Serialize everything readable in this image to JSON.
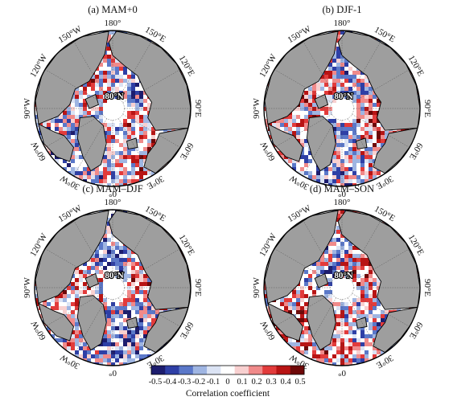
{
  "panels": [
    {
      "title": "(a) MAM+0"
    },
    {
      "title": "(b) DJF-1"
    },
    {
      "title": "(c) MAM–DJF"
    },
    {
      "title": "(d) MAM–SON"
    }
  ],
  "longitude_labels": [
    "180°",
    "150°E",
    "120°E",
    "90°E",
    "60°E",
    "30°E",
    "0°",
    "30°W",
    "60°W",
    "90°W",
    "120°W",
    "150°W"
  ],
  "latitude_label": "80°N",
  "colorbar": {
    "title": "Correlation coefficient",
    "ticks": [
      "-0.5",
      "-0.4",
      "-0.3",
      "-0.2",
      "-0.1",
      "0",
      "0.1",
      "0.2",
      "0.3",
      "0.4",
      "0.5"
    ],
    "colors": [
      "#1c1c6e",
      "#2e3fa6",
      "#5b78c9",
      "#9fb5e2",
      "#dbe3f4",
      "#ffffff",
      "#f8d0d0",
      "#f08a8a",
      "#e23b3b",
      "#b81414",
      "#6e0808"
    ]
  },
  "colors": {
    "land": "#9e9e9e",
    "ocean_neutral": "#ffffff",
    "coastline": "#000000"
  }
}
